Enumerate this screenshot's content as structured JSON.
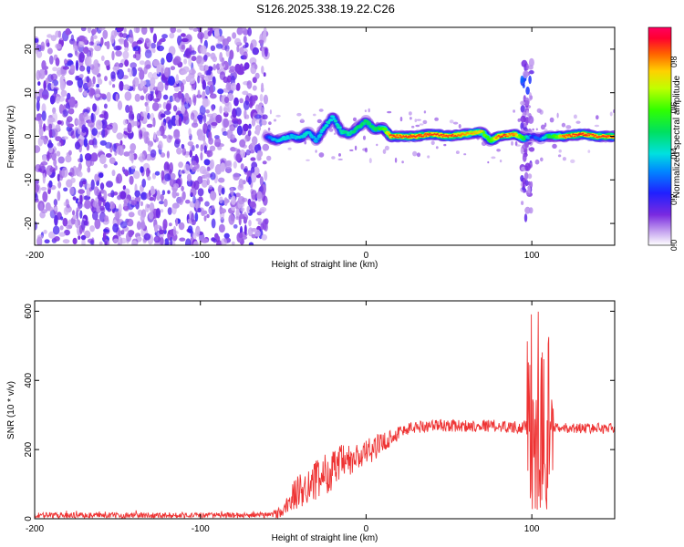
{
  "title": "S126.2025.338.19.22.C26",
  "chart_data": [
    {
      "type": "heatmap",
      "xlabel": "Height of straight line (km)",
      "ylabel": "Frequency (Hz)",
      "xlim": [
        -200,
        150
      ],
      "ylim": [
        -25,
        25
      ],
      "x_ticks": [
        -200,
        -100,
        0,
        100
      ],
      "x_tick_labels": [
        "-200",
        "-100",
        "0",
        "100"
      ],
      "y_ticks": [
        -20,
        -10,
        0,
        10,
        20
      ],
      "y_tick_labels": [
        "-20",
        "-10",
        "0",
        "10",
        "20"
      ],
      "colorbar": {
        "label": "Normalized spectral amplitude",
        "range": [
          0,
          0.95
        ],
        "ticks": [
          0.0,
          0.2,
          0.4,
          0.6,
          0.8
        ],
        "tick_labels": [
          "0.0",
          "0.2",
          "0.4",
          "0.6",
          "0.8"
        ]
      },
      "noise_region_x": [
        -200,
        -60
      ],
      "ridge": {
        "x": [
          -60,
          -55,
          -50,
          -45,
          -40,
          -35,
          -30,
          -25,
          -20,
          -15,
          -10,
          -5,
          0,
          5,
          10,
          15,
          20,
          30,
          40,
          50,
          60,
          70,
          75,
          80,
          90,
          95,
          100,
          105,
          110,
          120,
          130,
          140,
          150
        ],
        "freq": [
          0,
          -1,
          -0.5,
          0,
          -0.5,
          1,
          -1,
          2,
          4.5,
          1,
          0.5,
          2,
          3.5,
          1.5,
          2,
          0,
          0,
          0,
          0.5,
          0,
          0.5,
          1,
          -1,
          0,
          0.5,
          -0.5,
          0,
          -0.5,
          0,
          0,
          0.5,
          0,
          0
        ],
        "amplitude": [
          0.3,
          0.45,
          0.5,
          0.45,
          0.5,
          0.5,
          0.45,
          0.5,
          0.5,
          0.55,
          0.55,
          0.6,
          0.6,
          0.6,
          0.7,
          0.9,
          0.9,
          0.92,
          0.9,
          0.92,
          0.85,
          0.8,
          0.7,
          0.92,
          0.85,
          0.7,
          0.3,
          0.35,
          0.6,
          0.9,
          0.92,
          0.9,
          0.9
        ]
      },
      "spike": {
        "x": 97,
        "freq_range": [
          -19,
          17
        ]
      }
    },
    {
      "type": "line",
      "xlabel": "Height of straight line (km)",
      "ylabel": "SNR (10 * v/v)",
      "xlim": [
        -200,
        150
      ],
      "ylim": [
        0,
        630
      ],
      "x_ticks": [
        -200,
        -100,
        0,
        100
      ],
      "x_tick_labels": [
        "-200",
        "-100",
        "0",
        "100"
      ],
      "y_ticks": [
        0,
        200,
        400,
        600
      ],
      "y_tick_labels": [
        "0",
        "200",
        "400",
        "600"
      ],
      "series": [
        {
          "name": "SNR",
          "color": "#ee3333",
          "x": [
            -200,
            -150,
            -100,
            -60,
            -50,
            -45,
            -40,
            -35,
            -30,
            -25,
            -20,
            -15,
            -10,
            -5,
            0,
            5,
            10,
            15,
            20,
            25,
            30,
            40,
            50,
            60,
            70,
            80,
            90,
            95,
            100,
            105,
            110,
            115,
            120,
            130,
            140,
            150
          ],
          "y": [
            10,
            10,
            10,
            10,
            20,
            60,
            80,
            100,
            110,
            130,
            140,
            160,
            165,
            175,
            190,
            205,
            220,
            235,
            250,
            260,
            265,
            270,
            270,
            268,
            270,
            268,
            265,
            265,
            270,
            270,
            260,
            262,
            262,
            262,
            262,
            262
          ],
          "noise": [
            8,
            8,
            8,
            8,
            20,
            45,
            50,
            55,
            60,
            60,
            60,
            55,
            50,
            45,
            40,
            35,
            30,
            25,
            22,
            20,
            18,
            18,
            18,
            18,
            18,
            18,
            18,
            18,
            20,
            20,
            18,
            15,
            15,
            15,
            15,
            15
          ]
        }
      ],
      "spike_region": {
        "x_range": [
          97,
          113
        ],
        "peak_values": [
          600,
          500,
          480,
          450,
          420,
          380
        ],
        "dip_values": [
          20,
          10,
          15,
          30
        ]
      }
    }
  ]
}
